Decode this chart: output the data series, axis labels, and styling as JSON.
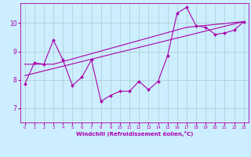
{
  "title": "",
  "xlabel": "Windchill (Refroidissement éolien,°C)",
  "ylabel": "",
  "bg_color": "#cceeff",
  "line_color": "#aa00aa",
  "grid_color": "#aacccc",
  "xlim": [
    -0.5,
    23.5
  ],
  "ylim": [
    6.5,
    10.7
  ],
  "yticks": [
    7,
    8,
    9,
    10
  ],
  "xticks": [
    0,
    1,
    2,
    3,
    4,
    5,
    6,
    7,
    8,
    9,
    10,
    11,
    12,
    13,
    14,
    15,
    16,
    17,
    18,
    19,
    20,
    21,
    22,
    23
  ],
  "curve1_x": [
    0,
    1,
    2,
    3,
    4,
    5,
    6,
    7,
    8,
    9,
    10,
    11,
    12,
    13,
    14,
    15,
    16,
    17,
    18,
    19,
    20,
    21,
    22,
    23
  ],
  "curve1_y": [
    7.85,
    8.6,
    8.55,
    9.4,
    8.7,
    7.8,
    8.1,
    8.7,
    7.25,
    7.45,
    7.6,
    7.6,
    7.95,
    7.65,
    7.95,
    8.85,
    10.35,
    10.55,
    9.9,
    9.85,
    9.6,
    9.65,
    9.75,
    10.05
  ],
  "curve2_x": [
    0,
    3,
    17,
    23
  ],
  "curve2_y": [
    8.55,
    8.55,
    9.85,
    10.05
  ],
  "curve3_x": [
    0,
    23
  ],
  "curve3_y": [
    8.15,
    10.05
  ],
  "xlabel_fontsize": 5.0,
  "xlabel_fontweight": "bold",
  "xtick_fontsize": 3.8,
  "ytick_fontsize": 5.5,
  "marker_size": 2.0,
  "line_width": 0.8,
  "spine_color": "#aa00aa",
  "tick_color": "#aa00aa"
}
